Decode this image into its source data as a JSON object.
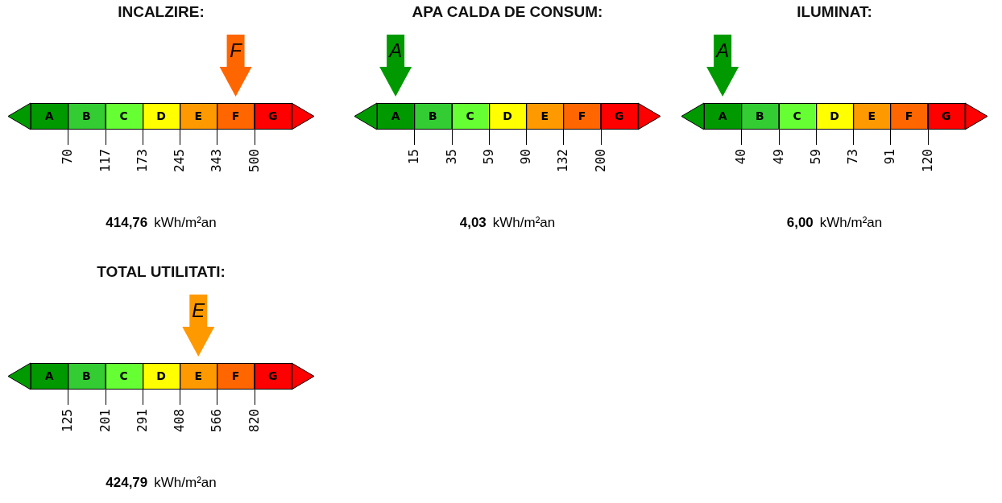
{
  "chart_data": [
    {
      "type": "other",
      "title": "INCALZIRE:",
      "categories": [
        "A",
        "B",
        "C",
        "D",
        "E",
        "F",
        "G"
      ],
      "colors": [
        "#009900",
        "#33cc33",
        "#66ff33",
        "#ffff00",
        "#ff9900",
        "#ff6600",
        "#ff0000"
      ],
      "needle": "F",
      "values": [
        70,
        117,
        173,
        245,
        343,
        500,
        null
      ],
      "data_labels": true,
      "annotations": [
        "414,76",
        "kWh/m²an"
      ]
    },
    {
      "type": "other",
      "title": "APA CALDA DE CONSUM:",
      "categories": [
        "A",
        "B",
        "C",
        "D",
        "E",
        "F",
        "G"
      ],
      "colors": [
        "#009900",
        "#33cc33",
        "#66ff33",
        "#ffff00",
        "#ff9900",
        "#ff6600",
        "#ff0000"
      ],
      "needle": "A",
      "values": [
        15,
        35,
        59,
        90,
        132,
        200,
        null
      ],
      "data_labels": true,
      "annotations": [
        "4,03",
        "kWh/m²an"
      ]
    },
    {
      "type": "other",
      "title": "ILUMINAT:",
      "categories": [
        "A",
        "B",
        "C",
        "D",
        "E",
        "F",
        "G"
      ],
      "colors": [
        "#009900",
        "#33cc33",
        "#66ff33",
        "#ffff00",
        "#ff9900",
        "#ff6600",
        "#ff0000"
      ],
      "needle": "A",
      "values": [
        40,
        49,
        59,
        73,
        91,
        120,
        null
      ],
      "data_labels": true,
      "annotations": [
        "6,00",
        "kWh/m²an"
      ]
    },
    {
      "type": "other",
      "title": "TOTAL UTILITATI:",
      "categories": [
        "A",
        "B",
        "C",
        "D",
        "E",
        "F",
        "G"
      ],
      "colors": [
        "#009900",
        "#33cc33",
        "#66ff33",
        "#ffff00",
        "#ff9900",
        "#ff6600",
        "#ff0000"
      ],
      "needle": "E",
      "values": [
        125,
        201,
        291,
        408,
        566,
        820,
        null
      ],
      "data_labels": true,
      "annotations": [
        "424,79",
        "kWh/m²an"
      ]
    }
  ]
}
